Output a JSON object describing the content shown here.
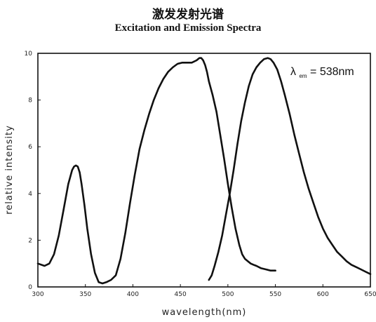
{
  "header": {
    "title_cn": "激发发射光谱",
    "title_en": "Excitation and Emission Spectra"
  },
  "chart_data": {
    "type": "line",
    "title": "Excitation and Emission Spectra",
    "xlabel": "wavelength(nm)",
    "ylabel": "relative intensity",
    "xlim": [
      300,
      650
    ],
    "ylim": [
      0,
      10
    ],
    "xticks": [
      "300",
      "350",
      "400",
      "450",
      "500",
      "550",
      "600",
      "650"
    ],
    "yticks": [
      "0",
      "2",
      "4",
      "6",
      "8",
      "10"
    ],
    "annotation": {
      "symbol": "λ",
      "subscript": "em",
      "text": " = 538nm"
    },
    "line_color": "#111111",
    "series": [
      {
        "x": [
          300,
          307,
          312,
          317,
          322,
          327,
          332,
          336,
          338,
          340,
          342,
          344,
          346,
          349,
          352,
          356,
          360,
          364,
          368,
          372,
          377,
          382,
          387,
          392,
          397,
          402,
          407,
          412,
          417,
          422,
          427,
          432,
          437,
          442,
          447,
          452,
          457,
          462,
          467,
          470,
          472,
          474,
          476,
          478,
          480,
          484,
          488,
          492,
          496,
          500,
          504,
          508,
          512,
          515,
          518,
          521,
          524,
          527,
          530,
          535,
          540,
          545,
          550
        ],
        "y": [
          1.0,
          0.9,
          1.0,
          1.4,
          2.2,
          3.3,
          4.4,
          5.0,
          5.15,
          5.2,
          5.15,
          4.9,
          4.4,
          3.5,
          2.5,
          1.4,
          0.6,
          0.2,
          0.15,
          0.2,
          0.3,
          0.5,
          1.2,
          2.3,
          3.6,
          4.8,
          5.9,
          6.7,
          7.4,
          8.0,
          8.5,
          8.9,
          9.2,
          9.4,
          9.55,
          9.6,
          9.6,
          9.6,
          9.7,
          9.8,
          9.8,
          9.7,
          9.5,
          9.2,
          8.8,
          8.2,
          7.5,
          6.5,
          5.5,
          4.4,
          3.4,
          2.5,
          1.8,
          1.4,
          1.2,
          1.1,
          1.0,
          0.95,
          0.9,
          0.8,
          0.75,
          0.7,
          0.7
        ]
      },
      {
        "x": [
          480,
          483,
          486,
          490,
          494,
          498,
          502,
          506,
          510,
          514,
          518,
          522,
          526,
          530,
          534,
          538,
          542,
          545,
          548,
          552,
          556,
          560,
          565,
          570,
          575,
          580,
          585,
          590,
          595,
          600,
          605,
          610,
          615,
          620,
          625,
          630,
          635,
          640,
          645,
          650
        ],
        "y": [
          0.3,
          0.5,
          0.9,
          1.5,
          2.2,
          3.1,
          4.0,
          5.0,
          6.1,
          7.1,
          7.9,
          8.6,
          9.1,
          9.4,
          9.6,
          9.75,
          9.8,
          9.75,
          9.6,
          9.3,
          8.8,
          8.2,
          7.4,
          6.5,
          5.7,
          4.9,
          4.2,
          3.6,
          3.0,
          2.5,
          2.1,
          1.8,
          1.5,
          1.3,
          1.1,
          0.95,
          0.85,
          0.75,
          0.65,
          0.55
        ]
      }
    ]
  }
}
